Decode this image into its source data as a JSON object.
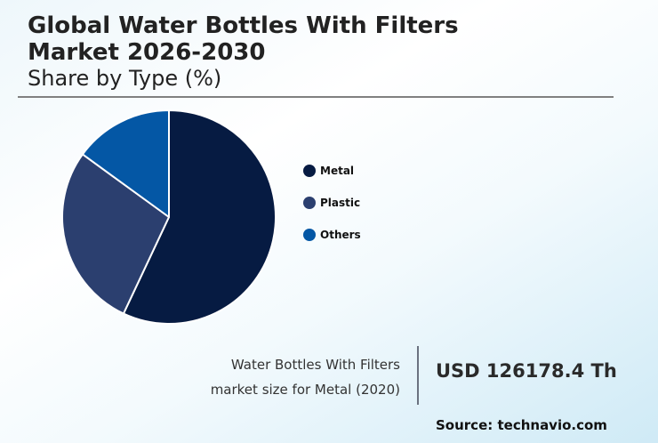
{
  "header": {
    "title_line1": "Global Water Bottles With Filters",
    "title_line2": "Market 2026-2030",
    "subtitle": "Share by Type (%)"
  },
  "legend": [
    {
      "label": "Metal",
      "color": "#061b42"
    },
    {
      "label": "Plastic",
      "color": "#2b3f6f"
    },
    {
      "label": "Others",
      "color": "#0457a5"
    }
  ],
  "info": {
    "label_line1": "Water Bottles With Filters",
    "label_line2": "market size for Metal (2020)",
    "value": "USD 126178.4 Th"
  },
  "source": "Source: technavio.com",
  "chart_data": {
    "type": "pie",
    "title": "Global Water Bottles With Filters Market 2026-2030",
    "subtitle": "Share by Type (%)",
    "categories": [
      "Metal",
      "Plastic",
      "Others"
    ],
    "values": [
      57,
      28,
      15
    ],
    "colors": [
      "#061b42",
      "#2b3f6f",
      "#0457a5"
    ],
    "start_angle": "top (12 o'clock), clockwise",
    "legend_position": "right",
    "annotation": "Water Bottles With Filters market size for Metal (2020): USD 126178.4 Th"
  }
}
